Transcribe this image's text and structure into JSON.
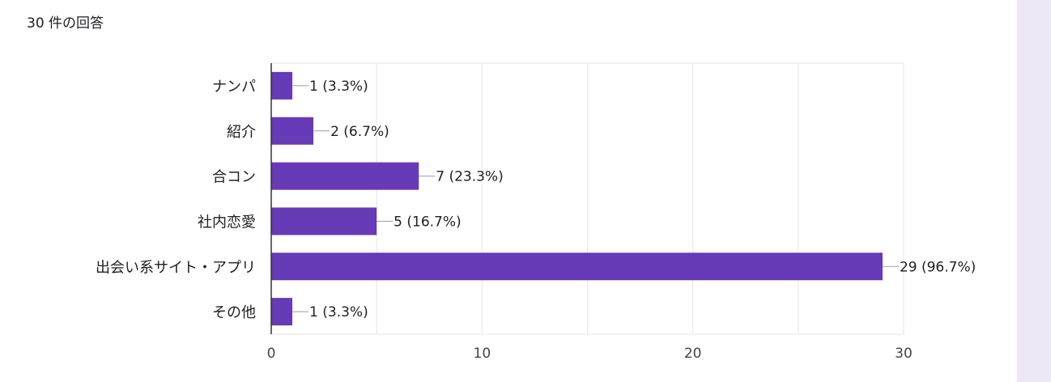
{
  "header": {
    "response_count": "30 件の回答"
  },
  "colors": {
    "bar": "#673ab7",
    "grid": "#e6e6e6",
    "axis": "#333333",
    "side_panel": "#ede7f6"
  },
  "chart_data": {
    "type": "bar",
    "orientation": "horizontal",
    "categories": [
      "ナンパ",
      "紹介",
      "合コン",
      "社内恋愛",
      "出会い系サイト・アプリ",
      "その他"
    ],
    "values": [
      1,
      2,
      7,
      5,
      29,
      1
    ],
    "data_labels": [
      "1 (3.3%)",
      "2 (6.7%)",
      "7 (23.3%)",
      "5 (16.7%)",
      "29 (96.7%)",
      "1 (3.3%)"
    ],
    "xlim": [
      0,
      30
    ],
    "xticks": [
      0,
      10,
      20,
      30
    ],
    "grid": true
  }
}
